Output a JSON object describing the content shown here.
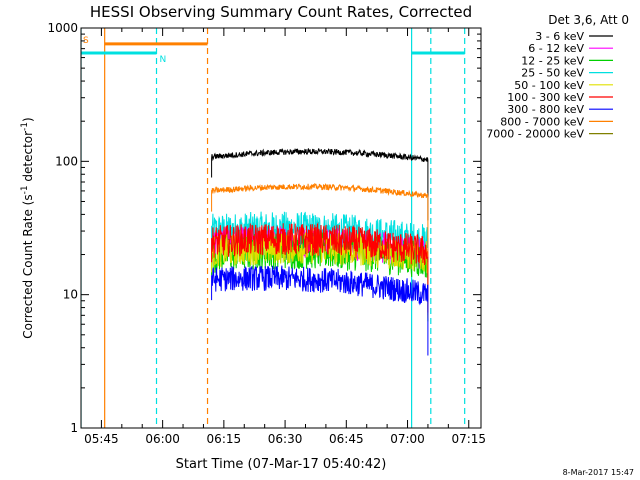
{
  "chart_data": {
    "type": "line",
    "title": "HESSI Observing Summary Count Rates, Corrected",
    "xlabel": "Start Time (07-Mar-17 05:40:42)",
    "ylabel_main": "Corrected Count Rate (s",
    "ylabel_sup1": "-1",
    "ylabel_mid": " detector",
    "ylabel_sup2": "-1",
    "ylabel_end": ")",
    "x_unit": "minutes after 05:40",
    "xlim": [
      0,
      98
    ],
    "ylim": [
      1,
      1000
    ],
    "yscale": "log",
    "x_ticks": [
      {
        "label": "05:45",
        "x": 5
      },
      {
        "label": "06:00",
        "x": 20
      },
      {
        "label": "06:15",
        "x": 35
      },
      {
        "label": "06:30",
        "x": 50
      },
      {
        "label": "06:45",
        "x": 65
      },
      {
        "label": "07:00",
        "x": 80
      },
      {
        "label": "07:15",
        "x": 95
      }
    ],
    "y_ticks": [
      {
        "label": "1",
        "y": 1
      },
      {
        "label": "10",
        "y": 10
      },
      {
        "label": "100",
        "y": 100
      },
      {
        "label": "1000",
        "y": 1000
      }
    ],
    "legend_title": "Det 3,6, Att 0",
    "legend_position": "right, outside plot",
    "series": [
      {
        "name": "3 - 6 keV",
        "color": "#000000",
        "start": 108,
        "end": 103,
        "noise": 0.05
      },
      {
        "name": "6 - 12 keV",
        "color": "#ff00ff",
        "start": 24,
        "end": 20,
        "noise": 0.28
      },
      {
        "name": "12 - 25 keV",
        "color": "#00d000",
        "start": 20,
        "end": 18,
        "noise": 0.32
      },
      {
        "name": "25 - 50 keV",
        "color": "#00e0e0",
        "start": 30,
        "end": 25,
        "noise": 0.3
      },
      {
        "name": "50 - 100 keV",
        "color": "#e0e000",
        "start": 21,
        "end": 19,
        "noise": 0.28
      },
      {
        "name": "100 - 300 keV",
        "color": "#ff0000",
        "start": 25,
        "end": 21,
        "noise": 0.28
      },
      {
        "name": "300 - 800 keV",
        "color": "#0000ff",
        "start": 13,
        "end": 10,
        "noise": 0.22
      },
      {
        "name": "800 - 7000 keV",
        "color": "#ff8000",
        "start": 60,
        "end": 55,
        "noise": 0.05
      },
      {
        "name": "7000 - 20000 keV",
        "color": "#808000",
        "start": 0,
        "end": 0,
        "noise": 0
      }
    ],
    "data_start_x": 32,
    "data_end_x": 85,
    "flags": [
      {
        "label": "S",
        "color": "#ff8000",
        "x_start": 5.8,
        "x_end": 31,
        "y": 760
      },
      {
        "label": "N",
        "color": "#00e0e0",
        "x_start": 0,
        "x_end": 18.5,
        "y": 650
      },
      {
        "label": "",
        "color": "#00e0e0",
        "x_start": 81,
        "x_end": 94,
        "y": 650
      }
    ],
    "vlines": [
      {
        "x": 0,
        "color": "#00e0e0",
        "style": "solid"
      },
      {
        "x": 5.8,
        "color": "#ff8000",
        "style": "solid"
      },
      {
        "x": 18.5,
        "color": "#00e0e0",
        "style": "dashed"
      },
      {
        "x": 31,
        "color": "#ff8000",
        "style": "dashed"
      },
      {
        "x": 81,
        "color": "#00e0e0",
        "style": "solid"
      },
      {
        "x": 85.7,
        "color": "#00e0e0",
        "style": "dashed"
      },
      {
        "x": 94,
        "color": "#00e0e0",
        "style": "dashed"
      }
    ],
    "footer_date": "8-Mar-2017 15:47"
  }
}
